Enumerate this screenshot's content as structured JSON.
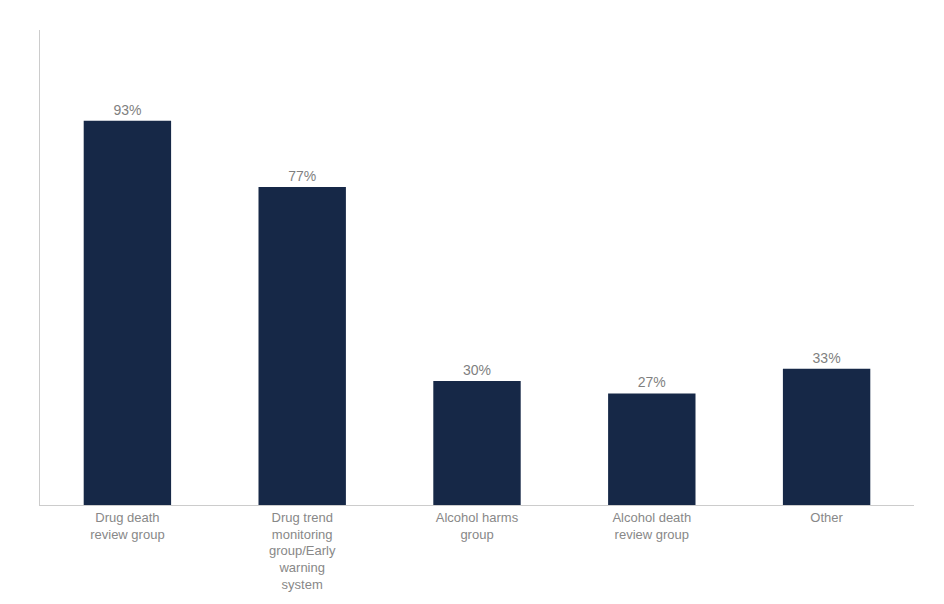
{
  "chart_data": {
    "type": "bar",
    "categories": [
      "Drug death\nreview group",
      "Drug trend\nmonitoring\ngroup/Early\nwarning\nsystem",
      "Alcohol harms\ngroup",
      "Alcohol death\nreview group",
      "Other"
    ],
    "values": [
      93,
      77,
      30,
      27,
      33
    ],
    "value_labels": [
      "93%",
      "77%",
      "30%",
      "27%",
      "33%"
    ],
    "data_labels": true,
    "color": "#162847",
    "ylim": [
      0,
      115
    ],
    "grid": false,
    "tick_labels": "x"
  }
}
